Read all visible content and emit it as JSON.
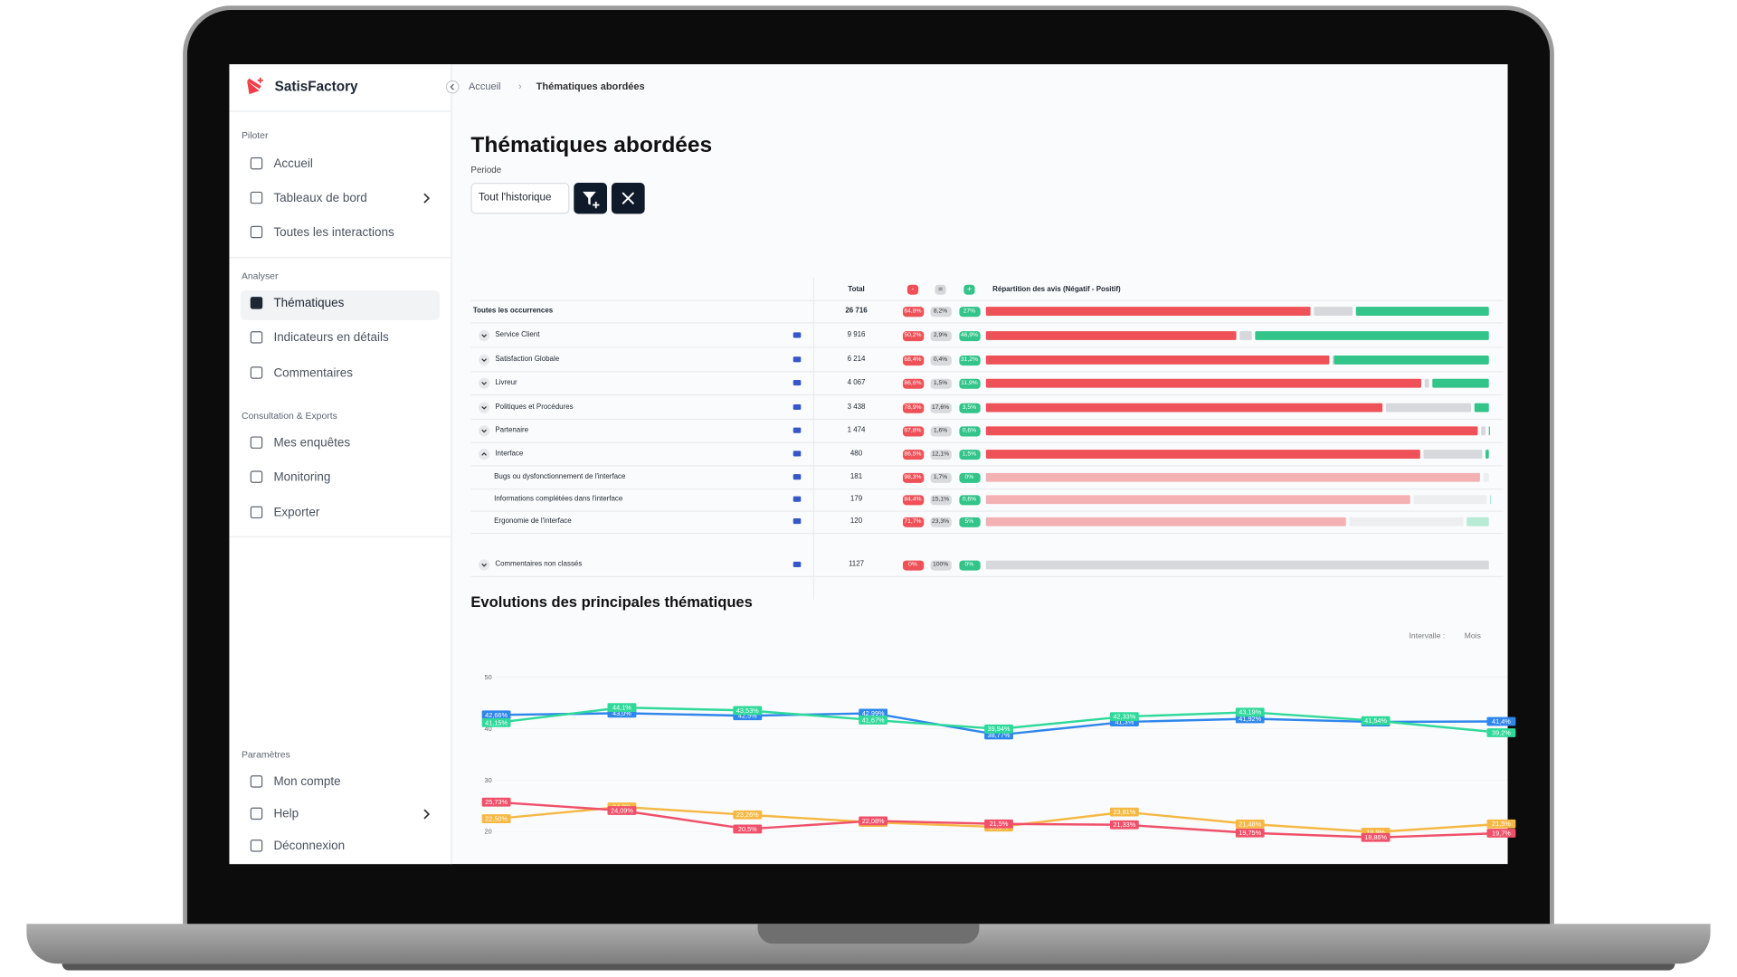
{
  "sidebar": {
    "brand": "SatisFactory",
    "sections": [
      {
        "title": "Piloter",
        "items": [
          "Accueil",
          "Tableaux de bord",
          "Toutes les interactions"
        ]
      },
      {
        "title": "Analyser",
        "items": [
          "Thématiques",
          "Indicateurs en détails",
          "Commentaires"
        ]
      },
      {
        "title": "Consultation & Exports",
        "items": [
          "Mes enquêtes",
          "Monitoring",
          "Exporter"
        ]
      },
      {
        "title": "Paramètres",
        "items": [
          "Mon compte",
          "Help",
          "Déconnexion"
        ]
      }
    ]
  },
  "breadcrumb": [
    "Accueil",
    "Thématiques abordées"
  ],
  "page": {
    "title": "Thématiques abordées",
    "period_label": "Periode",
    "period_value": "Tout l'historique"
  },
  "table": {
    "columns": [
      "Total",
      "-",
      "=",
      "+",
      "Répartition des avis (Négatif - Positif)"
    ],
    "summary": {
      "name": "Toutes les occurrences",
      "total": "26 716",
      "negative": {
        "value": 64.8,
        "label": "64,8%"
      },
      "neutral": {
        "value": 8.2,
        "label": "8,2%"
      },
      "positive": {
        "value": 27,
        "label": "27%"
      }
    },
    "rows": [
      {
        "name": "Service Client",
        "total": "9 916",
        "negative": {
          "value": 50.2,
          "label": "50,2%"
        },
        "neutral": {
          "value": 2.9,
          "label": "2,9%"
        },
        "positive": {
          "value": 46.9,
          "label": "46,9%"
        }
      },
      {
        "name": "Satisfaction Globale",
        "total": "6 214",
        "negative": {
          "value": 68.4,
          "label": "68,4%"
        },
        "neutral": {
          "value": 0.4,
          "label": "0,4%"
        },
        "positive": {
          "value": 31.2,
          "label": "31,2%"
        }
      },
      {
        "name": "Livreur",
        "total": "4 067",
        "negative": {
          "value": 86.6,
          "label": "86,6%"
        },
        "neutral": {
          "value": 1.5,
          "label": "1,5%"
        },
        "positive": {
          "value": 11.9,
          "label": "11,9%"
        }
      },
      {
        "name": "Politiques et Procédures",
        "total": "3 438",
        "negative": {
          "value": 78.9,
          "label": "78,9%"
        },
        "neutral": {
          "value": 17.6,
          "label": "17,6%"
        },
        "positive": {
          "value": 3.5,
          "label": "3,5%"
        }
      },
      {
        "name": "Partenaire",
        "total": "1 474",
        "negative": {
          "value": 97.8,
          "label": "97,8%"
        },
        "neutral": {
          "value": 1.6,
          "label": "1,6%"
        },
        "positive": {
          "value": 0.6,
          "label": "0,6%"
        }
      },
      {
        "name": "Interface",
        "total": "480",
        "negative": {
          "value": 86.5,
          "label": "86,5%"
        },
        "neutral": {
          "value": 12.1,
          "label": "12,1%"
        },
        "positive": {
          "value": 1.5,
          "label": "1,5%"
        },
        "children": [
          {
            "name": "Bugs ou dysfonctionnement de l'interface",
            "total": "181",
            "negative": {
              "value": 98.3,
              "label": "98,3%"
            },
            "neutral": {
              "value": 1.7,
              "label": "1,7%"
            },
            "positive": {
              "value": 0,
              "label": "0%"
            }
          },
          {
            "name": "Informations complétées dans l'interface",
            "total": "179",
            "negative": {
              "value": 84.4,
              "label": "84,4%"
            },
            "neutral": {
              "value": 15.1,
              "label": "15,1%"
            },
            "positive": {
              "value": 0.6,
              "label": "0,6%"
            }
          },
          {
            "name": "Ergonomie de l'interface",
            "total": "120",
            "negative": {
              "value": 71.7,
              "label": "71,7%"
            },
            "neutral": {
              "value": 23.3,
              "label": "23,3%"
            },
            "positive": {
              "value": 5,
              "label": "5%"
            }
          }
        ]
      }
    ],
    "unclassified": {
      "name": "Commentaires non classés",
      "total": "1127",
      "negative": {
        "value": 0,
        "label": "0%"
      },
      "neutral": {
        "value": 100,
        "label": "100%"
      },
      "positive": {
        "value": 0,
        "label": "0%"
      }
    }
  },
  "chart_data": {
    "type": "line",
    "title": "Evolutions des principales thématiques",
    "interval_label": "Intervalle :",
    "interval_value": "Mois",
    "categories": [
      null,
      null,
      null,
      null,
      null,
      null,
      null,
      null,
      null
    ],
    "ylim": [
      15,
      52
    ],
    "yticks": [
      20,
      30,
      40,
      50
    ],
    "grid": true,
    "series": [
      {
        "color": "#2f86eb",
        "values": [
          42.66,
          43.0,
          42.5,
          42.99,
          38.77,
          41.3,
          41.92,
          41.3,
          41.4
        ],
        "value_labels": [
          "42,66%",
          "43,0%",
          "42,5%",
          "42,99%",
          "38,77%",
          "41,3%",
          "41,92%",
          "41,3%",
          "41,4%"
        ]
      },
      {
        "color": "#2fd99a",
        "values": [
          41.15,
          44.1,
          43.53,
          41.67,
          39.94,
          42.33,
          43.19,
          41.54,
          39.2
        ],
        "value_labels": [
          "41,15%",
          "44,1%",
          "43,53%",
          "41,67%",
          "39,94%",
          "42,33%",
          "43,19%",
          "41,54%",
          "39,2%"
        ]
      },
      {
        "color": "#f6b844",
        "values": [
          22.5,
          24.8,
          23.26,
          21.8,
          20.9,
          23.81,
          21.48,
          19.9,
          21.5
        ],
        "value_labels": [
          "22,50%",
          "24,8%",
          "23,26%",
          "21,8%",
          "20,9%",
          "23,81%",
          "21,48%",
          "19,9%",
          "21,5%"
        ]
      },
      {
        "color": "#f0506a",
        "values": [
          25.73,
          24.09,
          20.5,
          22.08,
          21.5,
          21.33,
          19.75,
          18.86,
          19.7
        ],
        "value_labels": [
          "25,73%",
          "24,09%",
          "20,5%",
          "22,08%",
          "21,5%",
          "21,33%",
          "19,75%",
          "18,86%",
          "19,7%"
        ]
      }
    ]
  }
}
